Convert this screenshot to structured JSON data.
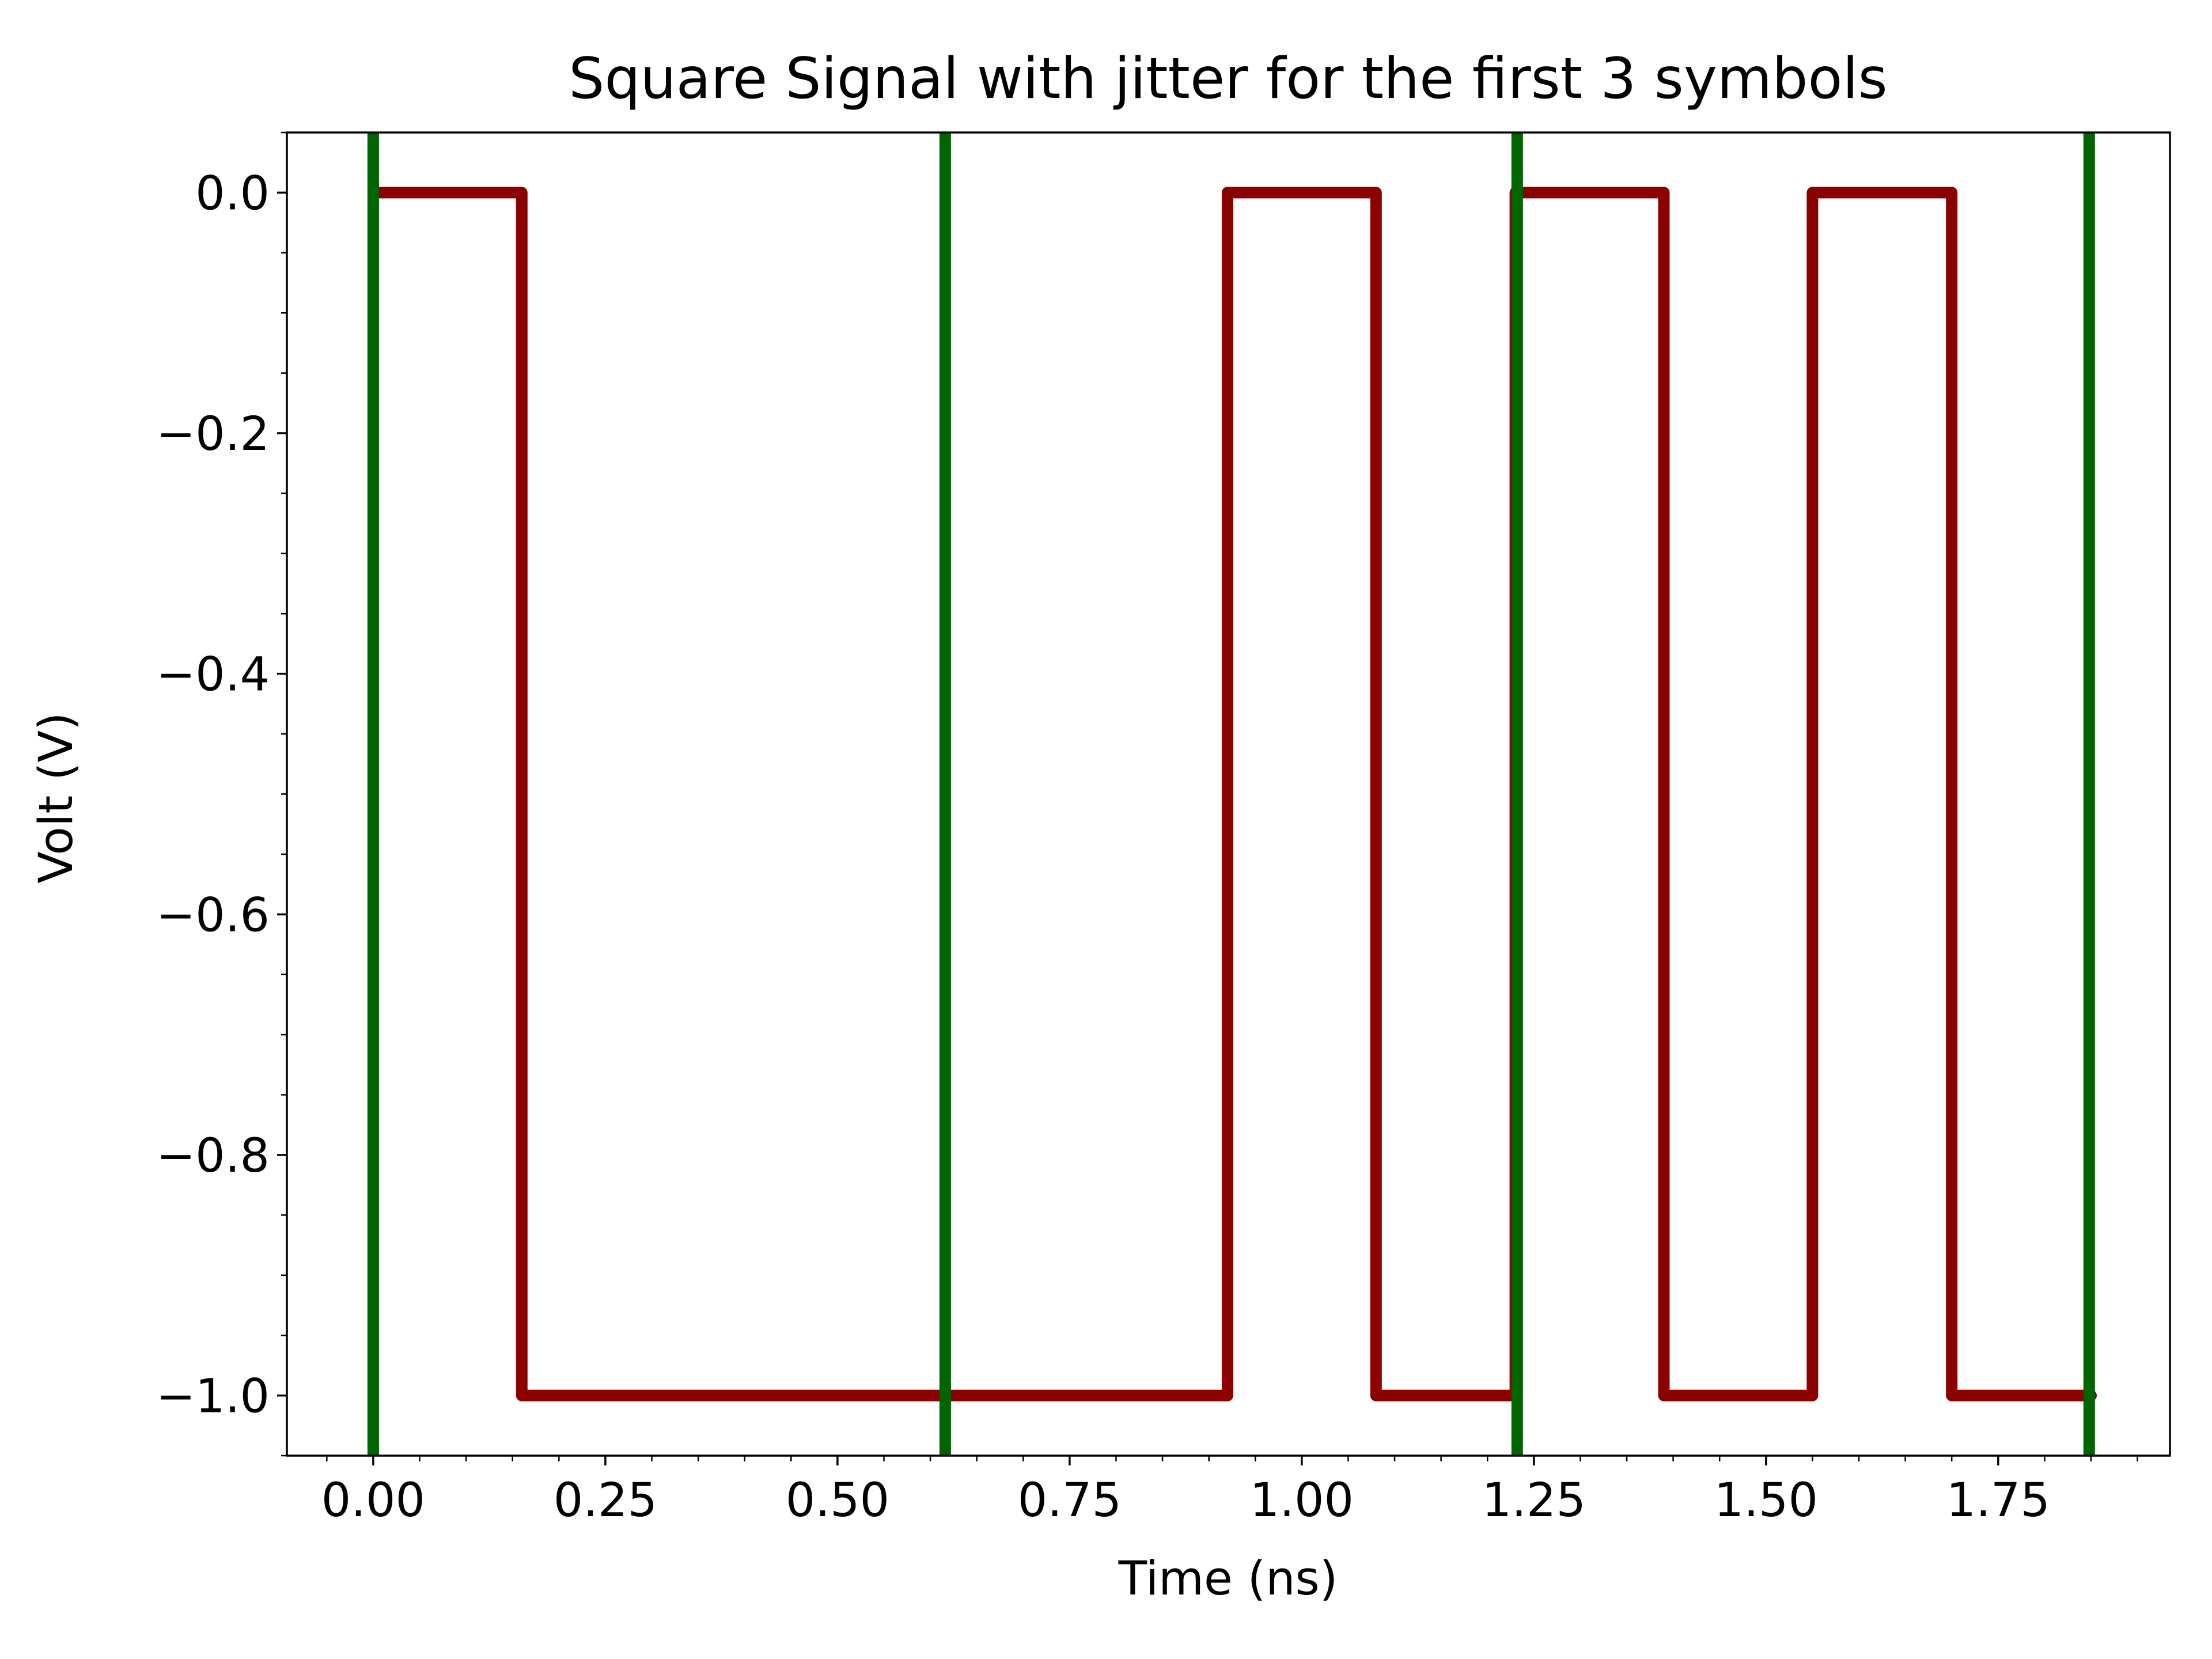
{
  "chart_data": {
    "type": "line",
    "title": "Square Signal with jitter for the first 3 symbols",
    "xlabel": "Time (ns)",
    "ylabel": "Volt (V)",
    "xlim": [
      -0.093,
      1.935
    ],
    "ylim": [
      -1.05,
      0.05
    ],
    "x_ticks": [
      0.0,
      0.25,
      0.5,
      0.75,
      1.0,
      1.25,
      1.5,
      1.75
    ],
    "x_tick_labels": [
      "0.00",
      "0.25",
      "0.50",
      "0.75",
      "1.00",
      "1.25",
      "1.50",
      "1.75"
    ],
    "y_ticks": [
      0.0,
      -0.2,
      -0.4,
      -0.6,
      -0.8,
      -1.0
    ],
    "y_tick_labels": [
      "0.0",
      "−0.2",
      "−0.4",
      "−0.6",
      "−0.8",
      "−1.0"
    ],
    "x_minor_step": 0.05,
    "y_minor_step": 0.05,
    "grid": false,
    "legend": false,
    "series": [
      {
        "color": "#8b0000",
        "x": [
          0.0,
          0.16,
          0.16,
          0.92,
          0.92,
          1.08,
          1.08,
          1.23,
          1.23,
          1.39,
          1.39,
          1.55,
          1.55,
          1.7,
          1.7,
          1.85
        ],
        "y": [
          0.0,
          0.0,
          -1.0,
          -1.0,
          0.0,
          0.0,
          -1.0,
          -1.0,
          0.0,
          0.0,
          -1.0,
          -1.0,
          0.0,
          0.0,
          -1.0,
          -1.0
        ]
      }
    ],
    "vlines": {
      "color": "#006400",
      "x": [
        0.0,
        0.616,
        1.232,
        1.848
      ]
    }
  }
}
